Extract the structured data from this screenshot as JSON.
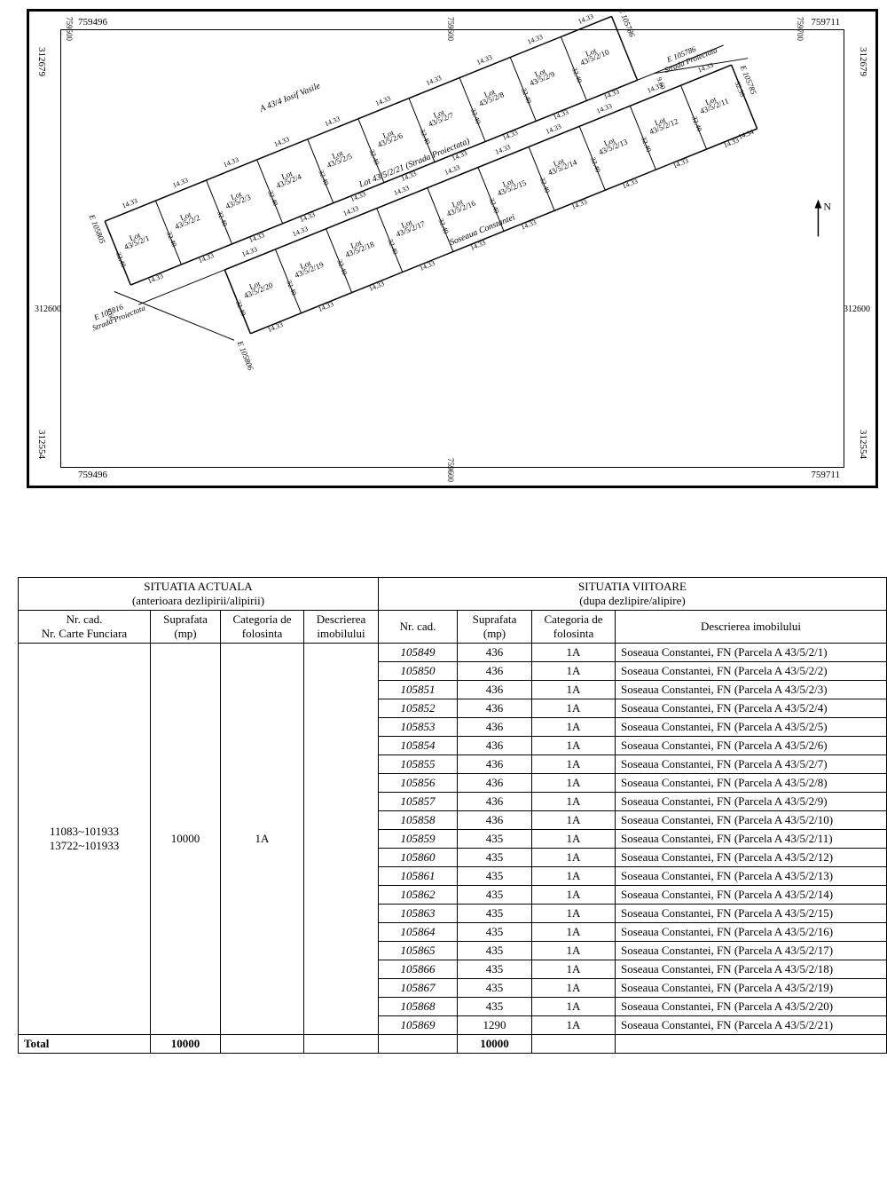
{
  "plan": {
    "coords": {
      "top_left_x": "759496",
      "top_left_xtick": "759500",
      "top_mid_xtick": "759600",
      "top_right_x": "759711",
      "top_right_xtick": "759700",
      "left_top_y": "312679",
      "right_top_y": "312679",
      "left_mid_y": "312600",
      "right_mid_y": "312600",
      "left_bot_y": "312554",
      "right_bot_y": "312554",
      "bot_left_x": "759496",
      "bot_mid_xtick": "759600",
      "bot_right_x": "759711"
    },
    "road_top": "A 43/4   Iosif Vasile",
    "road_mid": "Lot 43/5/2/21 (Strada Proiectata)",
    "road_bot": "Soseaua Constantei",
    "strada_left": "Strada Proiectata",
    "strada_right": "Strada Proiectata",
    "edge_labels": {
      "e105805": "E 105805",
      "e105816": "E 105816",
      "e105806": "E 105806",
      "e105786a": "E 105786",
      "e105786b": "E 105786",
      "e105785": "E 105785"
    },
    "dim_std": "14.33",
    "dim_h": "32.40",
    "dim_e1": "14.34",
    "dim_e2": "32.39",
    "dim_strada": "9.60",
    "north": "N",
    "lots_top": [
      {
        "label": "Lot",
        "num": "43/5/2/1"
      },
      {
        "label": "Lot",
        "num": "43/5/2/2"
      },
      {
        "label": "Lot",
        "num": "43/5/2/3"
      },
      {
        "label": "Lot",
        "num": "43/5/2/4"
      },
      {
        "label": "Lot",
        "num": "43/5/2/5"
      },
      {
        "label": "Lot",
        "num": "43/5/2/6"
      },
      {
        "label": "Lot",
        "num": "43/5/2/7"
      },
      {
        "label": "Lot",
        "num": "43/5/2/8"
      },
      {
        "label": "Lot",
        "num": "43/5/2/9"
      },
      {
        "label": "Lot",
        "num": "43/5/2/10"
      }
    ],
    "lots_bot": [
      {
        "label": "Lot",
        "num": "43/5/2/20"
      },
      {
        "label": "Lot",
        "num": "43/5/2/19"
      },
      {
        "label": "Lot",
        "num": "43/5/2/18"
      },
      {
        "label": "Lot",
        "num": "43/5/2/17"
      },
      {
        "label": "Lot",
        "num": "43/5/2/16"
      },
      {
        "label": "Lot",
        "num": "43/5/2/15"
      },
      {
        "label": "Lot",
        "num": "43/5/2/14"
      },
      {
        "label": "Lot",
        "num": "43/5/2/13"
      },
      {
        "label": "Lot",
        "num": "43/5/2/12"
      },
      {
        "label": "Lot",
        "num": "43/5/2/11"
      }
    ]
  },
  "table": {
    "header_actual": "SITUATIA ACTUALA",
    "header_actual_sub": "(anterioara dezlipirii/alipirii)",
    "header_future": "SITUATIA VIITOARE",
    "header_future_sub": "(dupa dezlipire/alipire)",
    "cols": {
      "nrcad_a": "Nr. cad.",
      "nrcf_a": "Nr. Carte Funciara",
      "sup_a": "Suprafata (mp)",
      "cat_a": "Categoria de folosinta",
      "desc_a": "Descrierea imobilului",
      "nrcad_v": "Nr. cad.",
      "sup_v": "Suprafata (mp)",
      "cat_v": "Categoria de folosinta",
      "desc_v": "Descrierea   imobilului"
    },
    "actual": {
      "nrcad": "11083~101933\n13722~101933",
      "sup": "10000",
      "cat": "1A",
      "desc": ""
    },
    "future_rows": [
      {
        "nr": "105849",
        "sup": "436",
        "cat": "1A",
        "desc": "Soseaua Constantei, FN  (Parcela A 43/5/2/1)"
      },
      {
        "nr": "105850",
        "sup": "436",
        "cat": "1A",
        "desc": "Soseaua Constantei, FN  (Parcela A 43/5/2/2)"
      },
      {
        "nr": "105851",
        "sup": "436",
        "cat": "1A",
        "desc": "Soseaua Constantei, FN  (Parcela A 43/5/2/3)"
      },
      {
        "nr": "105852",
        "sup": "436",
        "cat": "1A",
        "desc": "Soseaua Constantei, FN  (Parcela A 43/5/2/4)"
      },
      {
        "nr": "105853",
        "sup": "436",
        "cat": "1A",
        "desc": "Soseaua Constantei, FN  (Parcela A 43/5/2/5)"
      },
      {
        "nr": "105854",
        "sup": "436",
        "cat": "1A",
        "desc": "Soseaua Constantei, FN  (Parcela A 43/5/2/6)"
      },
      {
        "nr": "105855",
        "sup": "436",
        "cat": "1A",
        "desc": "Soseaua Constantei, FN  (Parcela A 43/5/2/7)"
      },
      {
        "nr": "105856",
        "sup": "436",
        "cat": "1A",
        "desc": "Soseaua Constantei, FN  (Parcela A 43/5/2/8)"
      },
      {
        "nr": "105857",
        "sup": "436",
        "cat": "1A",
        "desc": "Soseaua Constantei, FN  (Parcela A 43/5/2/9)"
      },
      {
        "nr": "105858",
        "sup": "436",
        "cat": "1A",
        "desc": "Soseaua Constantei, FN  (Parcela A 43/5/2/10)"
      },
      {
        "nr": "105859",
        "sup": "435",
        "cat": "1A",
        "desc": "Soseaua Constantei, FN  (Parcela A 43/5/2/11)"
      },
      {
        "nr": "105860",
        "sup": "435",
        "cat": "1A",
        "desc": "Soseaua Constantei, FN  (Parcela A 43/5/2/12)"
      },
      {
        "nr": "105861",
        "sup": "435",
        "cat": "1A",
        "desc": "Soseaua Constantei, FN  (Parcela A 43/5/2/13)"
      },
      {
        "nr": "105862",
        "sup": "435",
        "cat": "1A",
        "desc": "Soseaua Constantei, FN  (Parcela A 43/5/2/14)"
      },
      {
        "nr": "105863",
        "sup": "435",
        "cat": "1A",
        "desc": "Soseaua Constantei, FN  (Parcela A 43/5/2/15)"
      },
      {
        "nr": "105864",
        "sup": "435",
        "cat": "1A",
        "desc": "Soseaua Constantei, FN  (Parcela A 43/5/2/16)"
      },
      {
        "nr": "105865",
        "sup": "435",
        "cat": "1A",
        "desc": "Soseaua Constantei, FN  (Parcela A 43/5/2/17)"
      },
      {
        "nr": "105866",
        "sup": "435",
        "cat": "1A",
        "desc": "Soseaua Constantei, FN  (Parcela A 43/5/2/18)"
      },
      {
        "nr": "105867",
        "sup": "435",
        "cat": "1A",
        "desc": "Soseaua Constantei, FN  (Parcela A 43/5/2/19)"
      },
      {
        "nr": "105868",
        "sup": "435",
        "cat": "1A",
        "desc": "Soseaua Constantei, FN  (Parcela A 43/5/2/20)"
      },
      {
        "nr": "105869",
        "sup": "1290",
        "cat": "1A",
        "desc": "Soseaua Constantei, FN  (Parcela A 43/5/2/21)"
      }
    ],
    "total_label": "Total",
    "total_actual": "10000",
    "total_future": "10000"
  },
  "style": {
    "line_color": "#000000",
    "bg": "#ffffff",
    "dim_fontsize": 8,
    "lot_fontsize": 9,
    "table_fontsize": 13
  }
}
